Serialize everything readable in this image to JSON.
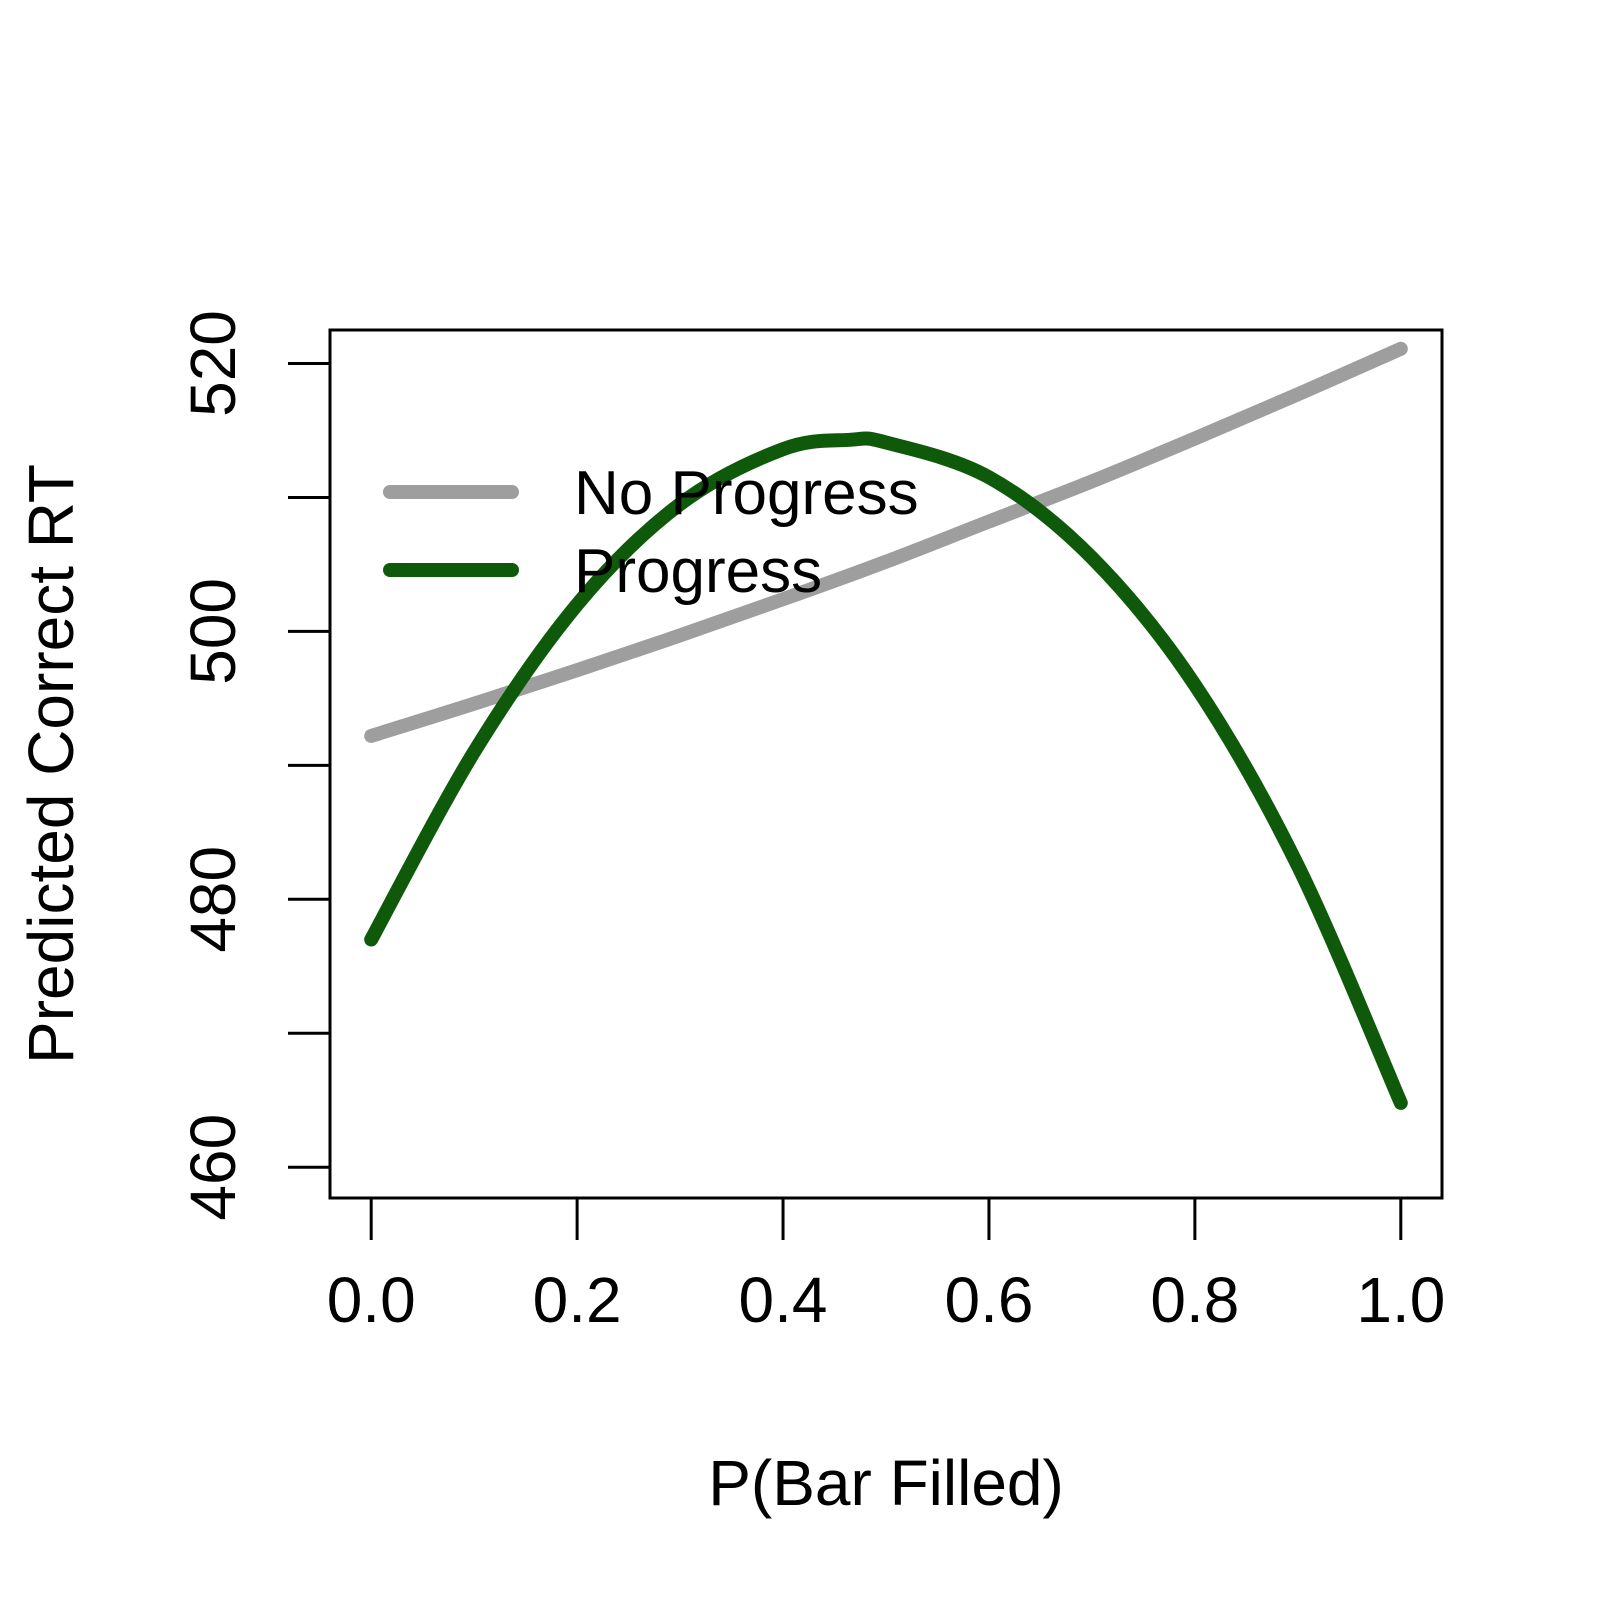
{
  "chart_data": {
    "type": "line",
    "title": "",
    "xlabel": "P(Bar Filled)",
    "ylabel": "Predicted Correct RT",
    "xlim": [
      -0.04,
      1.04
    ],
    "ylim": [
      457.7,
      522.5
    ],
    "x_ticks": [
      0.0,
      0.2,
      0.4,
      0.6,
      0.8,
      1.0
    ],
    "x_tick_labels": [
      "0.0",
      "0.2",
      "0.4",
      "0.6",
      "0.8",
      "1.0"
    ],
    "y_ticks": [
      460,
      470,
      480,
      490,
      500,
      510,
      520
    ],
    "y_tick_labels": [
      "460",
      "",
      "480",
      "",
      "500",
      "",
      "520"
    ],
    "grid": false,
    "legend_position": "top-left",
    "series": [
      {
        "name": "No Progress",
        "color": "#9e9e9e",
        "x": [
          0.0,
          0.1,
          0.2,
          0.3,
          0.4,
          0.5,
          0.6,
          0.7,
          0.8,
          0.9,
          1.0
        ],
        "y": [
          492.2,
          494.6,
          497.1,
          499.7,
          502.4,
          505.2,
          508.2,
          511.2,
          514.4,
          517.7,
          521.1
        ]
      },
      {
        "name": "Progress",
        "color": "#0f5a0a",
        "x": [
          0.0,
          0.1,
          0.2,
          0.3,
          0.4,
          0.465,
          0.5,
          0.6,
          0.7,
          0.8,
          0.9,
          1.0
        ],
        "y": [
          477.0,
          491.0,
          502.0,
          509.5,
          513.6,
          514.3,
          514.1,
          511.5,
          505.5,
          496.0,
          482.5,
          464.8
        ]
      }
    ]
  }
}
